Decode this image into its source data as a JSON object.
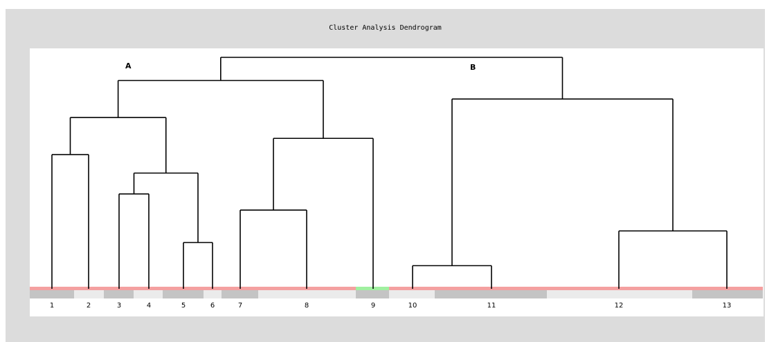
{
  "title": "Cluster Analysis Dendrogram",
  "cluster_labels": [
    "A",
    "B"
  ],
  "colors": {
    "baseline": "#f4a0a0",
    "highlight_segment": "#a0f0a0",
    "band_dark": "#c4c4c4",
    "band_light": "#ebebeb",
    "line": "#000000",
    "frame": "#dcdcdc"
  },
  "leaves": [
    "1",
    "2",
    "3",
    "4",
    "5",
    "6",
    "7",
    "8",
    "9",
    "10",
    "11",
    "12",
    "13"
  ],
  "highlighted_leaf": "9",
  "merges": [
    {
      "id": "m1",
      "left": "L5",
      "right": "L6",
      "height": 0.2
    },
    {
      "id": "m2",
      "left": "L10",
      "right": "L11",
      "height": 0.1
    },
    {
      "id": "m3",
      "left": "L12",
      "right": "L13",
      "height": 0.25
    },
    {
      "id": "m4",
      "left": "L3",
      "right": "L4",
      "height": 0.41
    },
    {
      "id": "m5",
      "left": "L7",
      "right": "L8",
      "height": 0.34
    },
    {
      "id": "m6",
      "left": "m4",
      "right": "m1",
      "height": 0.5
    },
    {
      "id": "m7",
      "left": "L1",
      "right": "L2",
      "height": 0.58
    },
    {
      "id": "m8",
      "left": "m5",
      "right": "L9",
      "height": 0.65
    },
    {
      "id": "m9",
      "left": "m7",
      "right": "m6",
      "height": 0.74
    },
    {
      "id": "m10",
      "left": "m2",
      "right": "m3",
      "height": 0.82
    },
    {
      "id": "m11",
      "left": "m9",
      "right": "m8",
      "height": 0.9
    },
    {
      "id": "m12",
      "left": "m11",
      "right": "m10",
      "height": 1.0
    }
  ]
}
